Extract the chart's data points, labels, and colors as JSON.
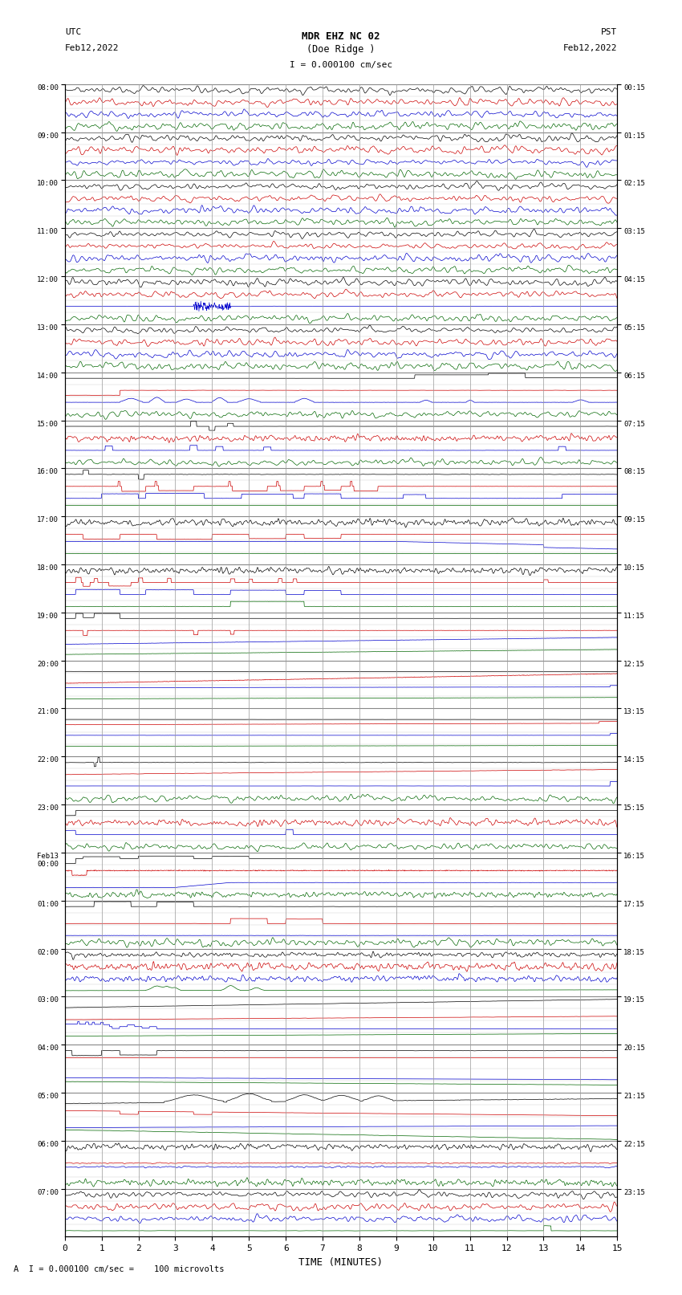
{
  "title_line1": "MDR EHZ NC 02",
  "title_line2": "(Doe Ridge )",
  "scale_text": "I = 0.000100 cm/sec",
  "left_header_top": "UTC",
  "left_header_bot": "Feb12,2022",
  "right_header_top": "PST",
  "right_header_bot": "Feb12,2022",
  "xlabel": "TIME (MINUTES)",
  "footer_text": "A  I = 0.000100 cm/sec =    100 microvolts",
  "xlim": [
    0,
    15
  ],
  "background_color": "#ffffff",
  "grid_color": "#aaaaaa",
  "trace_colors": [
    "#000000",
    "#cc0000",
    "#0000cc",
    "#006600"
  ],
  "utc_labels": [
    "08:00",
    "09:00",
    "10:00",
    "11:00",
    "12:00",
    "13:00",
    "14:00",
    "15:00",
    "16:00",
    "17:00",
    "18:00",
    "19:00",
    "20:00",
    "21:00",
    "22:00",
    "23:00",
    "Feb13\n00:00",
    "01:00",
    "02:00",
    "03:00",
    "04:00",
    "05:00",
    "06:00",
    "07:00"
  ],
  "pst_labels": [
    "00:15",
    "01:15",
    "02:15",
    "03:15",
    "04:15",
    "05:15",
    "06:15",
    "07:15",
    "08:15",
    "09:15",
    "10:15",
    "11:15",
    "12:15",
    "13:15",
    "14:15",
    "15:15",
    "16:15",
    "17:15",
    "18:15",
    "19:15",
    "20:15",
    "21:15",
    "22:15",
    "23:15"
  ],
  "num_hours": 24,
  "traces_per_hour": 4,
  "fig_width": 8.5,
  "fig_height": 16.13
}
